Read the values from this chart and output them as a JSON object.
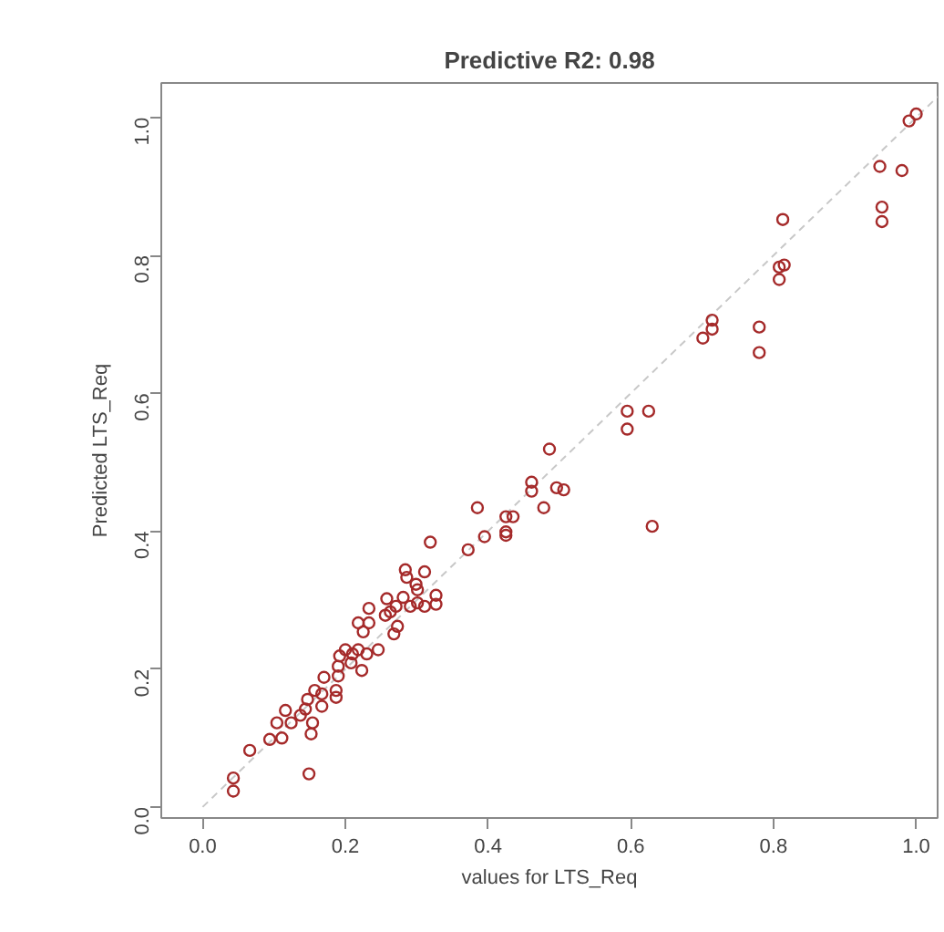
{
  "chart_data": {
    "type": "scatter",
    "title": "Predictive R2: 0.98",
    "xlabel": "values for LTS_Req",
    "ylabel": "Predicted LTS_Req",
    "xlim": [
      -0.058,
      1.03
    ],
    "ylim": [
      -0.016,
      1.05
    ],
    "xticks": [
      {
        "value": 0,
        "label": "0.0"
      },
      0.2,
      0.4,
      0.6,
      0.8,
      {
        "value": 1,
        "label": "1.0"
      }
    ],
    "yticks": [
      {
        "value": 0,
        "label": "0.0"
      },
      0.2,
      0.4,
      0.6,
      0.8,
      {
        "value": 1,
        "label": "1.0"
      }
    ],
    "grid": false,
    "series": [
      {
        "type": "line",
        "color": "#c8c8c8",
        "line_style": "dashed",
        "marker": "none",
        "x": [
          0,
          1.03
        ],
        "values": [
          0,
          1.03
        ]
      },
      {
        "marker": "circle",
        "color": "#a52a2a",
        "x": [
          0.043,
          0.043,
          0.149,
          0.066,
          0.094,
          0.111,
          0.116,
          0.104,
          0.124,
          0.137,
          0.144,
          0.147,
          0.154,
          0.152,
          0.157,
          0.167,
          0.167,
          0.17,
          0.187,
          0.187,
          0.19,
          0.19,
          0.192,
          0.2,
          0.208,
          0.223,
          0.218,
          0.225,
          0.233,
          0.233,
          0.21,
          0.218,
          0.23,
          0.246,
          0.258,
          0.256,
          0.263,
          0.268,
          0.271,
          0.273,
          0.281,
          0.284,
          0.286,
          0.291,
          0.299,
          0.301,
          0.301,
          0.311,
          0.311,
          0.319,
          0.327,
          0.327,
          0.372,
          0.385,
          0.395,
          0.425,
          0.425,
          0.425,
          0.435,
          0.461,
          0.461,
          0.486,
          0.478,
          0.496,
          0.506,
          0.595,
          0.595,
          0.625,
          0.63,
          0.701,
          0.714,
          0.714,
          0.78,
          0.78,
          0.808,
          0.808,
          0.815,
          0.813,
          0.949,
          0.952,
          0.952,
          0.98,
          0.99,
          1.0
        ],
        "values": [
          0.042,
          0.023,
          0.048,
          0.082,
          0.098,
          0.1,
          0.14,
          0.122,
          0.122,
          0.133,
          0.142,
          0.156,
          0.122,
          0.106,
          0.169,
          0.164,
          0.146,
          0.188,
          0.169,
          0.159,
          0.19,
          0.204,
          0.219,
          0.228,
          0.209,
          0.198,
          0.267,
          0.254,
          0.267,
          0.288,
          0.222,
          0.228,
          0.222,
          0.228,
          0.302,
          0.278,
          0.283,
          0.251,
          0.291,
          0.262,
          0.304,
          0.344,
          0.333,
          0.291,
          0.323,
          0.315,
          0.296,
          0.291,
          0.341,
          0.384,
          0.307,
          0.294,
          0.373,
          0.434,
          0.392,
          0.421,
          0.394,
          0.399,
          0.421,
          0.471,
          0.458,
          0.519,
          0.434,
          0.463,
          0.46,
          0.574,
          0.548,
          0.574,
          0.407,
          0.68,
          0.706,
          0.693,
          0.696,
          0.659,
          0.783,
          0.765,
          0.786,
          0.852,
          0.929,
          0.87,
          0.849,
          0.923,
          0.995,
          1.005
        ]
      }
    ]
  }
}
